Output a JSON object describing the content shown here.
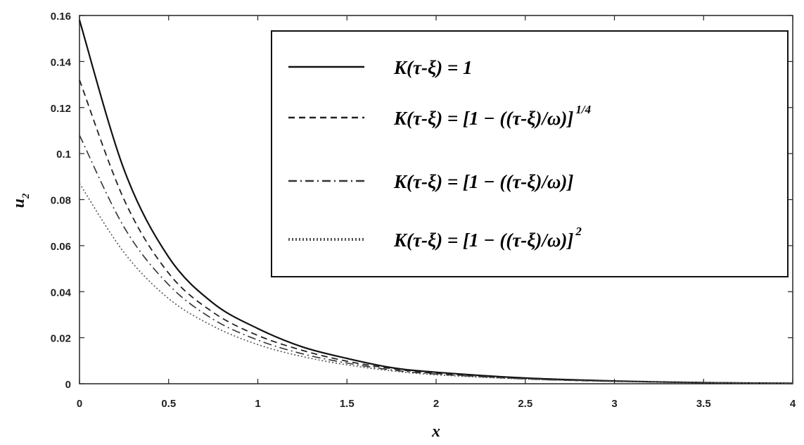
{
  "chart_data": {
    "type": "line",
    "xlabel": "x",
    "ylabel": "u",
    "ylabel_sub": "2",
    "xlim": [
      0,
      4
    ],
    "ylim": [
      0,
      0.16
    ],
    "xticks": [
      "0",
      "0.5",
      "1",
      "1.5",
      "2",
      "2.5",
      "3",
      "3.5",
      "4"
    ],
    "yticks": [
      "0",
      "0.02",
      "0.04",
      "0.06",
      "0.08",
      "0.1",
      "0.12",
      "0.14",
      "0.16"
    ],
    "grid": false,
    "legend_position": "top-right",
    "x": [
      0,
      0.25,
      0.5,
      0.75,
      1,
      1.25,
      1.5,
      1.75,
      2,
      2.5,
      3,
      3.5,
      4
    ],
    "series": [
      {
        "name": "K(τ-ξ) = 1",
        "style": "solid",
        "values": [
          0.158,
          0.093,
          0.055,
          0.035,
          0.024,
          0.016,
          0.011,
          0.007,
          0.005,
          0.0025,
          0.0012,
          0.0005,
          0.0002
        ]
      },
      {
        "name": "K(τ-ξ) = [1 − ((τ-ξ)/ω)]^1/4",
        "style": "dashed",
        "values": [
          0.132,
          0.08,
          0.048,
          0.031,
          0.021,
          0.0145,
          0.0098,
          0.0066,
          0.0045,
          0.0022,
          0.0011,
          0.0005,
          0.0002
        ]
      },
      {
        "name": "K(τ-ξ) = [1 − ((τ-ξ)/ω)]",
        "style": "dashdot",
        "values": [
          0.108,
          0.068,
          0.043,
          0.028,
          0.019,
          0.013,
          0.009,
          0.006,
          0.0042,
          0.0021,
          0.001,
          0.0005,
          0.0002
        ]
      },
      {
        "name": "K(τ-ξ) = [1 − ((τ-ξ)/ω)]^2",
        "style": "dotted",
        "values": [
          0.087,
          0.057,
          0.037,
          0.025,
          0.017,
          0.0118,
          0.0082,
          0.0056,
          0.0039,
          0.002,
          0.001,
          0.0005,
          0.0002
        ]
      }
    ],
    "legend": [
      {
        "main": "K(τ-ξ) = 1",
        "sup": ""
      },
      {
        "main": "K(τ-ξ) = [1 − ((τ-ξ)/ω)]",
        "sup": "1/4"
      },
      {
        "main": "K(τ-ξ) = [1 − ((τ-ξ)/ω)]",
        "sup": ""
      },
      {
        "main": "K(τ-ξ) = [1 − ((τ-ξ)/ω)]",
        "sup": "2"
      }
    ]
  }
}
